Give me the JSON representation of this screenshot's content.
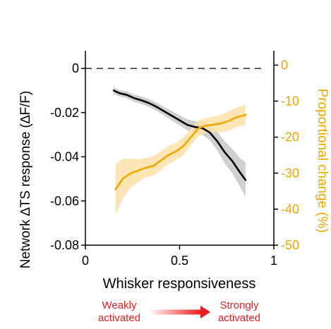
{
  "chart_data": {
    "type": "line",
    "xlabel": "Whisker responsiveness",
    "ylabel_left": "Network ∆TS response  (∆F/F)",
    "ylabel_right": "Proportional change (%)",
    "xlim": [
      0,
      1
    ],
    "ylim_left": [
      -0.08,
      0.008
    ],
    "ylim_right": [
      -50,
      4
    ],
    "x_ticks": [
      "0",
      "0.5",
      "1"
    ],
    "x_tick_values": [
      0,
      0.5,
      1
    ],
    "y_left_ticks": [
      "0",
      "-0.02",
      "-0.04",
      "-0.06",
      "-0.08"
    ],
    "y_left_tick_values": [
      0,
      -0.02,
      -0.04,
      -0.06,
      -0.08
    ],
    "y_right_ticks": [
      "0",
      "-10",
      "-20",
      "-30",
      "-40",
      "-50"
    ],
    "y_right_tick_values": [
      0,
      -10,
      -20,
      -30,
      -40,
      -50
    ],
    "reference_line": {
      "y": 0,
      "style": "dashed"
    },
    "series": [
      {
        "axis": "left",
        "color": "#000000",
        "band_color": "#c8c8c8",
        "x": [
          0.15,
          0.18,
          0.22,
          0.26,
          0.3,
          0.34,
          0.38,
          0.42,
          0.46,
          0.5,
          0.54,
          0.58,
          0.62,
          0.66,
          0.7,
          0.74,
          0.78,
          0.82,
          0.85
        ],
        "y": [
          -0.01,
          -0.0112,
          -0.012,
          -0.0135,
          -0.0145,
          -0.0158,
          -0.0175,
          -0.0195,
          -0.0215,
          -0.0235,
          -0.0255,
          -0.0265,
          -0.027,
          -0.029,
          -0.033,
          -0.038,
          -0.042,
          -0.047,
          -0.0505
        ],
        "upper": [
          -0.0085,
          -0.0098,
          -0.0105,
          -0.0118,
          -0.0128,
          -0.014,
          -0.0157,
          -0.0175,
          -0.0193,
          -0.0212,
          -0.023,
          -0.0238,
          -0.024,
          -0.0256,
          -0.0288,
          -0.033,
          -0.0365,
          -0.0405,
          -0.0425
        ],
        "lower": [
          -0.0115,
          -0.0126,
          -0.0135,
          -0.0152,
          -0.0162,
          -0.0176,
          -0.0193,
          -0.0215,
          -0.0237,
          -0.0258,
          -0.028,
          -0.0292,
          -0.03,
          -0.0324,
          -0.0372,
          -0.043,
          -0.0475,
          -0.0535,
          -0.058
        ]
      },
      {
        "axis": "right",
        "color": "#f0a800",
        "band_color": "#fbe2a8",
        "x": [
          0.16,
          0.2,
          0.24,
          0.28,
          0.32,
          0.36,
          0.4,
          0.44,
          0.48,
          0.52,
          0.56,
          0.6,
          0.64,
          0.68,
          0.72,
          0.76,
          0.8,
          0.85
        ],
        "y": [
          -34.5,
          -31.5,
          -30.0,
          -29.3,
          -28.5,
          -28.0,
          -26.5,
          -25.0,
          -24.0,
          -22.5,
          -20.0,
          -17.5,
          -16.8,
          -16.5,
          -16.2,
          -15.5,
          -14.5,
          -13.8
        ],
        "upper": [
          -27.5,
          -26.0,
          -26.0,
          -26.2,
          -25.8,
          -25.3,
          -23.9,
          -22.5,
          -21.6,
          -20.0,
          -17.6,
          -15.3,
          -14.7,
          -14.3,
          -13.8,
          -12.8,
          -11.8,
          -11.0
        ],
        "lower": [
          -41.5,
          -37.0,
          -34.0,
          -32.4,
          -31.2,
          -30.7,
          -29.1,
          -27.5,
          -26.4,
          -25.0,
          -22.4,
          -19.7,
          -18.9,
          -18.7,
          -18.6,
          -18.2,
          -17.2,
          -16.6
        ]
      }
    ],
    "annotations": {
      "weak_label": [
        "Weakly",
        "activated"
      ],
      "strong_label": [
        "Strongly",
        "activated"
      ],
      "arrow_color": "#ee1c1c"
    }
  }
}
